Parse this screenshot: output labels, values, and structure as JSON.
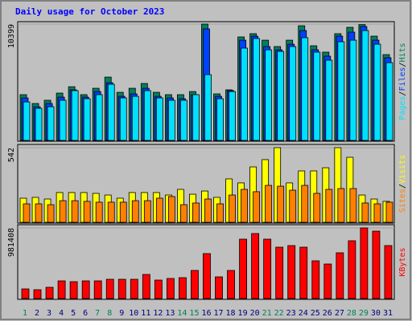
{
  "chart_data": {
    "type": "bar",
    "title": "Daily usage for October 2023",
    "separator": "/",
    "categories": [
      "1",
      "2",
      "3",
      "4",
      "5",
      "6",
      "7",
      "8",
      "9",
      "10",
      "11",
      "12",
      "13",
      "14",
      "15",
      "16",
      "17",
      "18",
      "19",
      "20",
      "21",
      "22",
      "23",
      "24",
      "25",
      "26",
      "27",
      "28",
      "29",
      "30",
      "31"
    ],
    "category_colors": [
      "#00805c",
      "#000080",
      "#000080",
      "#000080",
      "#000080",
      "#000080",
      "#00805c",
      "#00805c",
      "#000080",
      "#000080",
      "#000080",
      "#000080",
      "#000080",
      "#00805c",
      "#00805c",
      "#000080",
      "#000080",
      "#000080",
      "#000080",
      "#000080",
      "#00805c",
      "#00805c",
      "#000080",
      "#000080",
      "#000080",
      "#000080",
      "#000080",
      "#00805c",
      "#00805c",
      "#000080",
      "#000080"
    ],
    "panels": [
      {
        "ylim": [
          0,
          10399
        ],
        "yticks": [
          10399
        ],
        "series": [
          {
            "name": "Hits",
            "color": "#00805c",
            "values": [
              4090,
              3300,
              3590,
              4230,
              4800,
              4090,
              4660,
              5660,
              4300,
              4660,
              5090,
              4300,
              4090,
              4090,
              4370,
              10399,
              4160,
              4520,
              9250,
              9540,
              8960,
              8390,
              8960,
              10250,
              8460,
              7890,
              9540,
              10110,
              10350,
              9320,
              7670
            ]
          },
          {
            "name": "Files",
            "color": "#0040ff",
            "values": [
              3800,
              3010,
              3300,
              3870,
              4520,
              3870,
              4370,
              5160,
              3940,
              4160,
              4660,
              3940,
              3800,
              3730,
              4090,
              9970,
              3940,
              4450,
              8960,
              9320,
              8390,
              8100,
              8600,
              9820,
              8100,
              7530,
              9320,
              9680,
              10180,
              8960,
              7390
            ]
          },
          {
            "name": "Pages",
            "color": "#00e0ff",
            "values": [
              3440,
              2870,
              3010,
              3590,
              4450,
              3730,
              4090,
              5020,
              3800,
              3940,
              4450,
              3800,
              3590,
              3590,
              4090,
              5880,
              3730,
              4370,
              8250,
              9110,
              8100,
              7960,
              8390,
              9180,
              7890,
              7170,
              8820,
              8960,
              9820,
              8600,
              6950
            ]
          }
        ]
      },
      {
        "ylim": [
          0,
          542
        ],
        "yticks": [
          542
        ],
        "series": [
          {
            "name": "Visits",
            "color": "#ffff00",
            "values": [
              175,
              181,
              169,
              216,
              216,
              216,
              210,
              198,
              175,
              216,
              216,
              216,
              198,
              239,
              204,
              227,
              181,
              315,
              286,
              402,
              455,
              542,
              286,
              373,
              373,
              396,
              542,
              472,
              198,
              169,
              152
            ]
          },
          {
            "name": "Sites",
            "color": "#ff8000",
            "values": [
              134,
              134,
              128,
              157,
              157,
              152,
              146,
              146,
              146,
              157,
              157,
              175,
              187,
              128,
              140,
              169,
              134,
              198,
              239,
              222,
              268,
              262,
              233,
              268,
              210,
              239,
              245,
              245,
              140,
              134,
              146
            ]
          }
        ]
      },
      {
        "ylim": [
          0,
          981408
        ],
        "yticks": [
          981408
        ],
        "series": [
          {
            "name": "KBytes",
            "color": "#ff0000",
            "values": [
              133820,
              122670,
              156130,
              245340,
              234190,
              245340,
              245340,
              267650,
              267650,
              267650,
              334560,
              256500,
              278800,
              289950,
              390320,
              624510,
              301100,
              390320,
              825250,
              903310,
              825250,
              713730,
              736030,
              713730,
              524140,
              479540,
              635660,
              802940,
              981408,
              936770,
              736030
            ]
          }
        ]
      }
    ]
  }
}
